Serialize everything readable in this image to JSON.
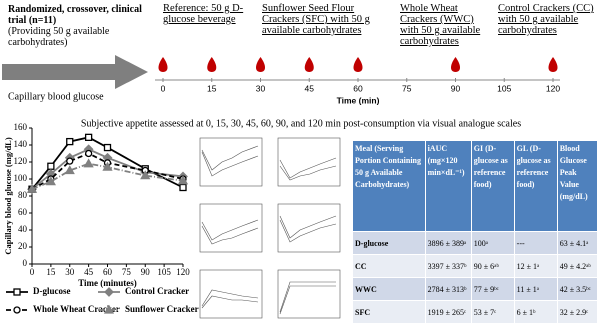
{
  "header": {
    "design": "Randomized, crossover, clinical trial (n=11)",
    "note": "(Providing 50 g available carbohydrates)",
    "arrow_label": "Capillary blood glucose",
    "treatments": [
      "Reference: 50 g D-glucose beverage",
      "Sunflower Seed Flour Crackers (SFC) with 50 g available carbohydrates",
      "Whole Wheat Crackers (WWC) with 50 g available carbohydrates",
      "Control Crackers (CC) with 50 g available carbohydrates"
    ]
  },
  "timeline": {
    "label": "Time (min)",
    "xlim": [
      0,
      120
    ],
    "ticks": [
      0,
      15,
      30,
      45,
      60,
      75,
      90,
      105,
      120
    ],
    "samples": [
      0,
      15,
      30,
      45,
      60,
      90,
      120
    ],
    "color": "#c00000"
  },
  "caption": "Subjective appetite assessed at 0, 15, 30, 45, 60, 90, and 120 min post-consumption via visual analogue scales",
  "chart_data": {
    "type": "line",
    "x_label": "Time (minutes)",
    "y_label": "Capillary blood glucose (mg/dL)",
    "x": [
      0,
      15,
      30,
      45,
      60,
      90,
      120
    ],
    "xlim": [
      0,
      120
    ],
    "xticks": [
      0,
      15,
      30,
      45,
      60,
      75,
      90,
      105,
      120
    ],
    "ylim": [
      0,
      160
    ],
    "yticks": [
      0,
      20,
      40,
      60,
      80,
      100,
      120,
      140,
      160
    ],
    "series": [
      {
        "name": "D-glucose",
        "color": "#000000",
        "dash": "solid",
        "marker": "square",
        "values": [
          88,
          115,
          144,
          149,
          137,
          112,
          90
        ]
      },
      {
        "name": "Control Cracker",
        "color": "#808080",
        "dash": "solid",
        "marker": "diamond",
        "values": [
          88,
          106,
          125,
          135,
          125,
          108,
          103
        ]
      },
      {
        "name": "Whole Wheat Cracker",
        "color": "#000000",
        "dash": "dashed",
        "marker": "circle",
        "values": [
          88,
          100,
          121,
          130,
          119,
          110,
          100
        ]
      },
      {
        "name": "Sunflower Cracker",
        "color": "#808080",
        "dash": "dashdot",
        "marker": "triangle",
        "values": [
          88,
          97,
          110,
          118,
          114,
          104,
          98
        ]
      }
    ]
  },
  "table": {
    "header": [
      "Meal (Serving Portion Containing 50 g Available Carbohydrates)",
      "iAUC (mg×120 min×dL⁻¹)",
      "GI (D-glucose as reference food)",
      "GL (D-glucose as reference food)",
      "Blood Glucose Peak Value (mg/dL)"
    ],
    "rows": [
      [
        "D-glucose",
        "3896 ± 389ᵃ",
        "100ᵃ",
        "---",
        "63 ± 4.1ᵃ"
      ],
      [
        "CC",
        "3397 ± 337ᵇ",
        "90 ± 6ᵃᵇ",
        "12 ± 1ᵃ",
        "49 ± 4.2ᵃᵇ"
      ],
      [
        "WWC",
        "2784 ± 313ᵇ",
        "77 ± 9ᵇᶜ",
        "11 ± 1ᵃ",
        "42 ± 3.5ᵇᶜ"
      ],
      [
        "SFC",
        "1919 ± 265ᶜ",
        "53 ± 7ᶜ",
        "6 ± 1ᵇ",
        "32 ± 2.9ᶜ"
      ]
    ]
  }
}
